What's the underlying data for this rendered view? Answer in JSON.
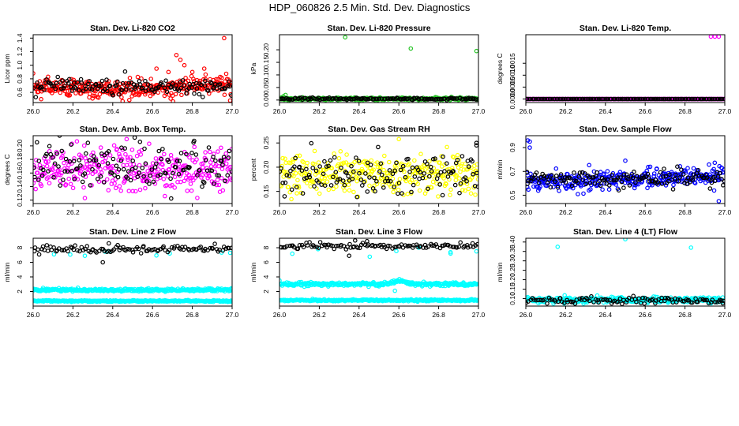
{
  "title": "HDP_060826  2.5 Min. Std. Dev. Diagnostics",
  "colors": {
    "red": "#ff0000",
    "green": "#22c322",
    "magenta": "#ff00ff",
    "yellow": "#ffff00",
    "blue": "#0000ff",
    "cyan": "#00ffff",
    "black": "#000000"
  },
  "chart_data": [
    {
      "type": "scatter",
      "title": "Stan. Dev. Li-820 CO2",
      "ylabel": "Licor ppm",
      "xlim": [
        26.0,
        27.0
      ],
      "xticks": [
        "26.0",
        "26.2",
        "26.4",
        "26.6",
        "26.8",
        "27.0"
      ],
      "ylim": [
        0.45,
        1.45
      ],
      "yticks": [
        "0.6",
        "0.8",
        "1.0",
        "1.2",
        "1.4"
      ],
      "series": [
        {
          "name": "primary",
          "color": "red",
          "n": 330,
          "seed": 11,
          "base": 0.66,
          "spread": 0.07,
          "rise_after": 26.65,
          "rise_amount": 0.06,
          "extra": [
            [
              26.0,
              0.88
            ],
            [
              26.62,
              0.95
            ],
            [
              26.68,
              0.9
            ],
            [
              26.72,
              1.15
            ],
            [
              26.74,
              1.08
            ],
            [
              26.76,
              1.0
            ],
            [
              26.86,
              0.95
            ],
            [
              26.96,
              1.4
            ],
            [
              26.99,
              0.48
            ],
            [
              26.8,
              0.9
            ]
          ]
        },
        {
          "name": "overlay",
          "color": "black",
          "n": 140,
          "seed": 12,
          "base": 0.68,
          "spread": 0.06,
          "extra": []
        }
      ]
    },
    {
      "type": "scatter",
      "title": "Stan. Dev. Li-820 Pressure",
      "ylabel": "kPa",
      "xlim": [
        26.0,
        27.0
      ],
      "xticks": [
        "26.0",
        "26.2",
        "26.4",
        "26.6",
        "26.8",
        "27.0"
      ],
      "ylim": [
        -0.01,
        0.26
      ],
      "yticks": [
        "0.00",
        "0.05",
        "0.10",
        "0.15",
        "0.20"
      ],
      "series": [
        {
          "name": "primary",
          "color": "green",
          "n": 330,
          "seed": 21,
          "base": 0.005,
          "spread": 0.0025,
          "extra": [
            [
              26.01,
              0.01
            ],
            [
              26.02,
              0.015
            ],
            [
              26.03,
              0.02
            ],
            [
              26.33,
              0.25
            ],
            [
              26.66,
              0.205
            ],
            [
              26.99,
              0.195
            ]
          ]
        },
        {
          "name": "overlay",
          "color": "black",
          "n": 140,
          "seed": 22,
          "base": 0.005,
          "spread": 0.002,
          "extra": []
        }
      ]
    },
    {
      "type": "scatter",
      "title": "Stan. Dev. Li-820 Temp.",
      "ylabel": "degrees C",
      "xlim": [
        26.0,
        27.0
      ],
      "xticks": [
        "26.0",
        "26.2",
        "26.4",
        "26.6",
        "26.8",
        "27.0"
      ],
      "ylim": [
        -0.00015,
        0.0027
      ],
      "yticks": [
        "0.0000",
        "0.0005",
        "0.0010",
        "0.0015"
      ],
      "series": [
        {
          "name": "primary",
          "color": "magenta",
          "n": 330,
          "seed": 31,
          "base": 0.0,
          "spread": 0.0,
          "extra": [
            [
              26.93,
              0.00262
            ],
            [
              26.95,
              0.00262
            ],
            [
              26.97,
              0.00262
            ]
          ]
        },
        {
          "name": "overlay",
          "color": "black",
          "n": 140,
          "seed": 32,
          "base": 0.0,
          "spread": 0.0,
          "extra": []
        }
      ]
    },
    {
      "type": "scatter",
      "title": "Stan. Dev. Amb. Box Temp.",
      "ylabel": "degrees C",
      "xlim": [
        26.0,
        27.0
      ],
      "xticks": [
        "26.0",
        "26.2",
        "26.4",
        "26.6",
        "26.8",
        "27.0"
      ],
      "ylim": [
        0.115,
        0.215
      ],
      "yticks": [
        "0.12",
        "0.14",
        "0.16",
        "0.18",
        "0.20"
      ],
      "series": [
        {
          "name": "primary",
          "color": "magenta",
          "n": 330,
          "seed": 41,
          "base": 0.165,
          "spread": 0.016,
          "extra": [
            [
              26.47,
              0.21
            ],
            [
              26.26,
              0.123
            ]
          ]
        },
        {
          "name": "overlay",
          "color": "black",
          "n": 140,
          "seed": 42,
          "base": 0.168,
          "spread": 0.016,
          "extra": []
        }
      ]
    },
    {
      "type": "scatter",
      "title": "Stan. Dev. Gas Stream RH",
      "ylabel": "percent",
      "xlim": [
        26.0,
        27.0
      ],
      "xticks": [
        "26.0",
        "26.2",
        "26.4",
        "26.6",
        "26.8",
        "27.0"
      ],
      "ylim": [
        0.125,
        0.265
      ],
      "yticks": [
        "0.15",
        "0.20",
        "0.25"
      ],
      "series": [
        {
          "name": "primary",
          "color": "yellow",
          "n": 330,
          "seed": 51,
          "base": 0.185,
          "spread": 0.02,
          "extra": [
            [
              26.6,
              0.258
            ]
          ]
        },
        {
          "name": "overlay",
          "color": "black",
          "n": 140,
          "seed": 52,
          "base": 0.185,
          "spread": 0.02,
          "extra": [
            [
              26.99,
              0.245
            ],
            [
              26.99,
              0.25
            ]
          ]
        }
      ]
    },
    {
      "type": "scatter",
      "title": "Stan. Dev. Sample Flow",
      "ylabel": "ml/min",
      "xlim": [
        26.0,
        27.0
      ],
      "xticks": [
        "26.0",
        "26.2",
        "26.4",
        "26.6",
        "26.8",
        "27.0"
      ],
      "ylim": [
        0.43,
        1.0
      ],
      "yticks": [
        "0.5",
        "0.7",
        "0.9"
      ],
      "series": [
        {
          "name": "primary",
          "color": "blue",
          "n": 330,
          "seed": 61,
          "base": 0.62,
          "spread": 0.04,
          "rise_after": 26.3,
          "rise_amount": 0.04,
          "extra": [
            [
              26.01,
              0.96
            ],
            [
              26.02,
              0.95
            ],
            [
              26.02,
              0.9
            ],
            [
              26.5,
              0.79
            ],
            [
              26.97,
              0.45
            ]
          ]
        },
        {
          "name": "overlay",
          "color": "black",
          "n": 140,
          "seed": 62,
          "base": 0.64,
          "spread": 0.035,
          "extra": []
        }
      ]
    },
    {
      "type": "scatter",
      "title": "Stan. Dev. Line 2 Flow",
      "ylabel": "ml/min",
      "xlim": [
        26.0,
        27.0
      ],
      "xticks": [
        "26.0",
        "26.2",
        "26.4",
        "26.6",
        "26.8",
        "27.0"
      ],
      "ylim": [
        0.0,
        9.3
      ],
      "yticks": [
        "2",
        "4",
        "6",
        "8"
      ],
      "series": [
        {
          "name": "band-high",
          "color": "cyan",
          "n": 330,
          "seed": 71,
          "base": 2.2,
          "spread": 0.1,
          "extra": [
            [
              26.05,
              2.5
            ]
          ]
        },
        {
          "name": "band-low",
          "color": "cyan",
          "n": 330,
          "seed": 72,
          "base": 0.7,
          "spread": 0.05,
          "extra": []
        },
        {
          "name": "cyan-top",
          "color": "cyan",
          "n": 6,
          "seed": 73,
          "base": 7.4,
          "spread": 0.3,
          "extra": [
            [
              26.26,
              6.9
            ],
            [
              26.38,
              7.5
            ],
            [
              26.99,
              7.3
            ]
          ]
        },
        {
          "name": "overlay",
          "color": "black",
          "n": 110,
          "seed": 74,
          "base": 7.8,
          "spread": 0.25,
          "extra": [
            [
              26.35,
              6.0
            ],
            [
              26.38,
              8.6
            ]
          ]
        }
      ]
    },
    {
      "type": "scatter",
      "title": "Stan. Dev. Line 3 Flow",
      "ylabel": "ml/min",
      "xlim": [
        26.0,
        27.0
      ],
      "xticks": [
        "26.0",
        "26.2",
        "26.4",
        "26.6",
        "26.8",
        "27.0"
      ],
      "ylim": [
        0.0,
        9.3
      ],
      "yticks": [
        "2",
        "4",
        "6",
        "8"
      ],
      "series": [
        {
          "name": "band-high",
          "color": "cyan",
          "n": 330,
          "seed": 81,
          "base": 3.0,
          "spread": 0.12,
          "bump_at": 26.6,
          "bump_amount": 0.5,
          "extra": [
            [
              26.0,
              3.5
            ],
            [
              26.58,
              2.1
            ],
            [
              26.5,
              2.7
            ]
          ]
        },
        {
          "name": "band-low",
          "color": "cyan",
          "n": 330,
          "seed": 82,
          "base": 0.8,
          "spread": 0.06,
          "extra": []
        },
        {
          "name": "cyan-top",
          "color": "cyan",
          "n": 6,
          "seed": 83,
          "base": 7.6,
          "spread": 0.3,
          "extra": [
            [
              26.86,
              7.2
            ],
            [
              26.99,
              7.5
            ]
          ]
        },
        {
          "name": "overlay",
          "color": "black",
          "n": 110,
          "seed": 84,
          "base": 8.2,
          "spread": 0.2,
          "extra": [
            [
              26.35,
              6.9
            ],
            [
              26.38,
              9.0
            ],
            [
              26.44,
              8.9
            ]
          ]
        }
      ]
    },
    {
      "type": "scatter",
      "title": "Stan. Dev. Line 4 (LT) Flow",
      "ylabel": "ml/min",
      "xlim": [
        26.0,
        27.0
      ],
      "xticks": [
        "26.0",
        "26.2",
        "26.4",
        "26.6",
        "26.8",
        "27.0"
      ],
      "ylim": [
        0.06,
        0.42
      ],
      "yticks": [
        "0.10",
        "0.15",
        "0.20",
        "0.25",
        "0.30",
        "0.35",
        "0.40"
      ],
      "series": [
        {
          "name": "primary",
          "color": "cyan",
          "n": 330,
          "seed": 91,
          "base": 0.093,
          "spread": 0.008,
          "extra": [
            [
              26.16,
              0.375
            ],
            [
              26.5,
              0.415
            ],
            [
              26.83,
              0.37
            ]
          ]
        },
        {
          "name": "overlay",
          "color": "black",
          "n": 110,
          "seed": 92,
          "base": 0.09,
          "spread": 0.008,
          "extra": [
            [
              26.99,
              0.075
            ]
          ]
        }
      ]
    }
  ]
}
